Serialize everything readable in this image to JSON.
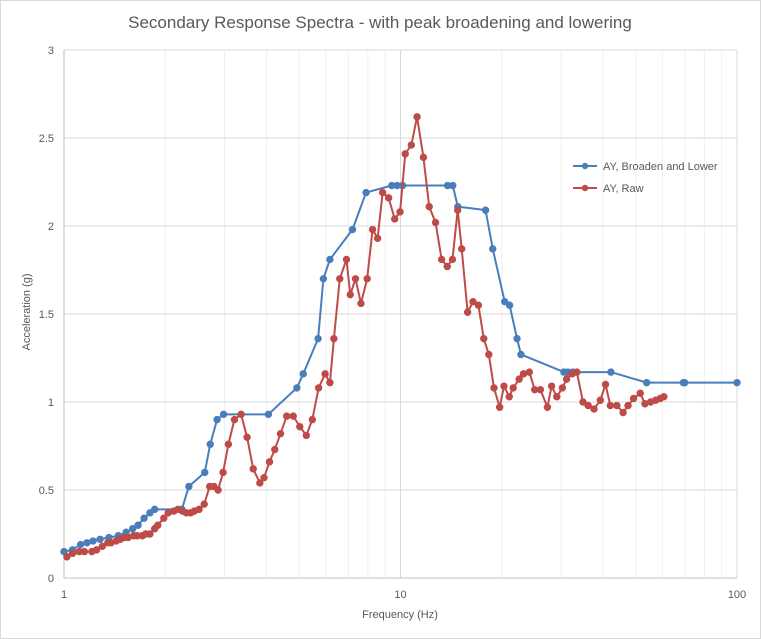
{
  "chart_data": {
    "type": "line",
    "title": "Secondary Response Spectra - with peak broadening and lowering",
    "xlabel": "Frequency (Hz)",
    "ylabel": "Acceleration (g)",
    "x_scale": "log",
    "xlim": [
      1,
      100
    ],
    "ylim": [
      0,
      3
    ],
    "x_ticks": [
      "1",
      "10",
      "100"
    ],
    "y_ticks": [
      "0",
      "0.5",
      "1",
      "1.5",
      "2",
      "2.5",
      "3"
    ],
    "grid": true,
    "legend_position": "right",
    "series": [
      {
        "name": "AY, Broaden and Lower",
        "color": "#4a7ebb",
        "x": [
          1.0,
          1.06,
          1.12,
          1.17,
          1.22,
          1.28,
          1.36,
          1.45,
          1.53,
          1.6,
          1.66,
          1.73,
          1.8,
          1.86,
          2.24,
          2.35,
          2.62,
          2.72,
          2.85,
          2.98,
          4.05,
          4.92,
          5.14,
          5.69,
          5.9,
          6.17,
          7.2,
          7.9,
          9.42,
          9.77,
          10.14,
          13.8,
          14.3,
          14.8,
          17.9,
          18.8,
          20.4,
          21.1,
          22.2,
          22.8,
          30.6,
          31.4,
          32.5,
          42.2,
          53.9,
          69.3,
          69.9,
          100
        ],
        "y": [
          0.15,
          0.16,
          0.19,
          0.2,
          0.21,
          0.22,
          0.23,
          0.24,
          0.26,
          0.28,
          0.3,
          0.34,
          0.37,
          0.39,
          0.39,
          0.52,
          0.6,
          0.76,
          0.9,
          0.93,
          0.93,
          1.08,
          1.16,
          1.36,
          1.7,
          1.81,
          1.98,
          2.19,
          2.23,
          2.23,
          2.23,
          2.23,
          2.23,
          2.11,
          2.09,
          1.87,
          1.57,
          1.55,
          1.36,
          1.27,
          1.17,
          1.17,
          1.17,
          1.17,
          1.11,
          1.11,
          1.11,
          1.11
        ]
      },
      {
        "name": "AY, Raw",
        "color": "#be4b48",
        "x": [
          1.02,
          1.06,
          1.11,
          1.15,
          1.21,
          1.25,
          1.3,
          1.35,
          1.38,
          1.43,
          1.47,
          1.51,
          1.55,
          1.61,
          1.65,
          1.71,
          1.75,
          1.8,
          1.86,
          1.9,
          1.98,
          2.04,
          2.12,
          2.18,
          2.25,
          2.31,
          2.38,
          2.44,
          2.52,
          2.61,
          2.71,
          2.79,
          2.87,
          2.97,
          3.08,
          3.21,
          3.36,
          3.5,
          3.65,
          3.82,
          3.93,
          4.08,
          4.23,
          4.4,
          4.59,
          4.8,
          5.02,
          5.25,
          5.47,
          5.71,
          5.97,
          6.17,
          6.34,
          6.6,
          6.91,
          7.09,
          7.35,
          7.63,
          7.96,
          8.26,
          8.55,
          8.85,
          9.22,
          9.61,
          9.97,
          10.33,
          10.77,
          11.2,
          11.7,
          12.17,
          12.71,
          13.25,
          13.77,
          14.27,
          14.79,
          15.2,
          15.83,
          16.42,
          17.04,
          17.68,
          18.3,
          18.96,
          19.71,
          20.3,
          21.05,
          21.62,
          22.52,
          23.2,
          24.15,
          25.05,
          26.05,
          27.33,
          28.12,
          29.14,
          30.27,
          31.15,
          32.35,
          33.43,
          34.86,
          36.12,
          37.59,
          39.25,
          40.67,
          42.03,
          43.96,
          45.87,
          47.45,
          49.29,
          51.58,
          53.26,
          55.37,
          57.32,
          59.14,
          60.62
        ],
        "y": [
          0.12,
          0.14,
          0.15,
          0.15,
          0.15,
          0.16,
          0.18,
          0.2,
          0.2,
          0.21,
          0.22,
          0.23,
          0.23,
          0.24,
          0.24,
          0.24,
          0.25,
          0.25,
          0.28,
          0.3,
          0.34,
          0.37,
          0.38,
          0.39,
          0.38,
          0.37,
          0.37,
          0.38,
          0.39,
          0.42,
          0.52,
          0.52,
          0.5,
          0.6,
          0.76,
          0.9,
          0.93,
          0.8,
          0.62,
          0.54,
          0.57,
          0.66,
          0.73,
          0.82,
          0.92,
          0.92,
          0.86,
          0.81,
          0.9,
          1.08,
          1.16,
          1.11,
          1.36,
          1.7,
          1.81,
          1.61,
          1.7,
          1.56,
          1.7,
          1.98,
          1.93,
          2.19,
          2.16,
          2.04,
          2.08,
          2.41,
          2.46,
          2.62,
          2.39,
          2.11,
          2.02,
          1.81,
          1.77,
          1.81,
          2.09,
          1.87,
          1.51,
          1.57,
          1.55,
          1.36,
          1.27,
          1.08,
          0.97,
          1.09,
          1.03,
          1.08,
          1.13,
          1.16,
          1.17,
          1.07,
          1.07,
          0.97,
          1.09,
          1.03,
          1.08,
          1.13,
          1.16,
          1.17,
          1.0,
          0.98,
          0.96,
          1.01,
          1.1,
          0.98,
          0.98,
          0.94,
          0.98,
          1.02,
          1.05,
          0.99,
          1.0,
          1.01,
          1.02,
          1.03
        ]
      }
    ]
  }
}
